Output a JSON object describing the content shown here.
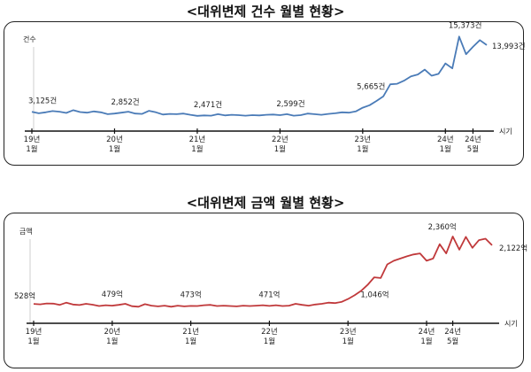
{
  "chart_data": [
    {
      "type": "line",
      "title": "<대위변제 건수 월별 현황>",
      "ylabel": "건수",
      "xlabel": "시기",
      "x_ticks": [
        {
          "index": 0,
          "line1": "19년",
          "line2": "1월"
        },
        {
          "index": 12,
          "line1": "20년",
          "line2": "1월"
        },
        {
          "index": 24,
          "line1": "21년",
          "line2": "1월"
        },
        {
          "index": 36,
          "line1": "22년",
          "line2": "1월"
        },
        {
          "index": 48,
          "line1": "23년",
          "line2": "1월"
        },
        {
          "index": 60,
          "line1": "24년",
          "line2": "1월"
        },
        {
          "index": 64,
          "line1": "24년",
          "line2": "5월"
        }
      ],
      "ylim": [
        0,
        17000
      ],
      "color": "#4a7bb7",
      "series": [
        {
          "values": [
            3125,
            2900,
            3050,
            3250,
            3150,
            2950,
            3400,
            3100,
            3000,
            3200,
            3050,
            2750,
            2852,
            3000,
            3150,
            2850,
            2800,
            3300,
            3050,
            2700,
            2800,
            2750,
            2850,
            2650,
            2471,
            2550,
            2500,
            2750,
            2550,
            2650,
            2600,
            2500,
            2600,
            2550,
            2650,
            2700,
            2599,
            2750,
            2500,
            2600,
            2850,
            2750,
            2650,
            2800,
            2900,
            3050,
            3000,
            3200,
            3800,
            4200,
            4900,
            5665,
            7600,
            7700,
            8200,
            8900,
            9200,
            10000,
            9000,
            9300,
            11000,
            10200,
            15373,
            12500,
            13700,
            14800,
            13993
          ]
        }
      ],
      "annotations": [
        {
          "index": 0,
          "label": "3,125건"
        },
        {
          "index": 12,
          "label": "2,852건"
        },
        {
          "index": 24,
          "label": "2,471건"
        },
        {
          "index": 36,
          "label": "2,599건"
        },
        {
          "index": 51,
          "label": "5,665건"
        },
        {
          "index": 62,
          "label": "15,373건"
        },
        {
          "index": 66,
          "label": "13,993건"
        }
      ]
    },
    {
      "type": "line",
      "title": "<대위변제 금액 월별 현황>",
      "ylabel": "금액",
      "xlabel": "시기",
      "x_ticks": [
        {
          "index": 0,
          "line1": "19년",
          "line2": "1월"
        },
        {
          "index": 12,
          "line1": "20년",
          "line2": "1월"
        },
        {
          "index": 24,
          "line1": "21년",
          "line2": "1월"
        },
        {
          "index": 36,
          "line1": "22년",
          "line2": "1월"
        },
        {
          "index": 48,
          "line1": "23년",
          "line2": "1월"
        },
        {
          "index": 60,
          "line1": "24년",
          "line2": "1월"
        },
        {
          "index": 64,
          "line1": "24년",
          "line2": "5월"
        }
      ],
      "ylim": [
        0,
        2600
      ],
      "color": "#c0393b",
      "series": [
        {
          "values": [
            528,
            515,
            540,
            535,
            500,
            560,
            510,
            495,
            530,
            505,
            470,
            490,
            479,
            500,
            530,
            465,
            450,
            520,
            480,
            460,
            480,
            450,
            480,
            460,
            473,
            470,
            490,
            500,
            470,
            480,
            470,
            460,
            480,
            470,
            480,
            490,
            471,
            490,
            470,
            480,
            530,
            500,
            480,
            510,
            530,
            560,
            550,
            580,
            660,
            760,
            880,
            1046,
            1250,
            1230,
            1600,
            1700,
            1760,
            1820,
            1870,
            1900,
            1700,
            1760,
            2150,
            1900,
            2360,
            2000,
            2350,
            2050,
            2260,
            2300,
            2122
          ]
        }
      ],
      "annotations": [
        {
          "index": 0,
          "label": "528억"
        },
        {
          "index": 12,
          "label": "479억"
        },
        {
          "index": 24,
          "label": "473억"
        },
        {
          "index": 36,
          "label": "471억"
        },
        {
          "index": 51,
          "label": "1,046억"
        },
        {
          "index": 64,
          "label": "2,360억"
        },
        {
          "index": 70,
          "label": "2,122억"
        }
      ]
    }
  ]
}
